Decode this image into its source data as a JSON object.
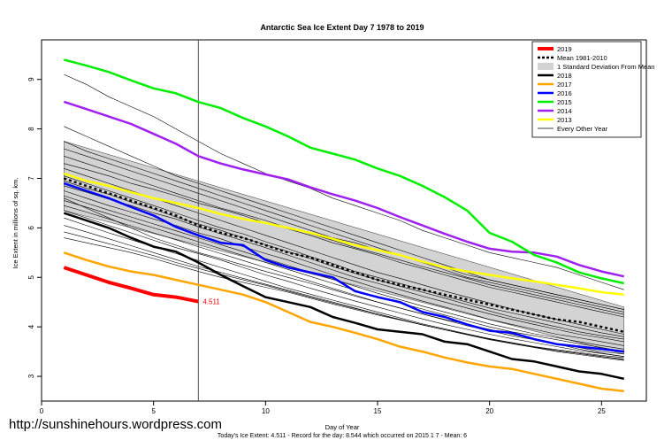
{
  "watermark": "http://sunshinehours.wordpress.com",
  "footer_text": "Today's Ice Extent: 4.511  - Record for the day: 8.544 which occurred on 2015 1 7  - Mean: 6",
  "chart_data": {
    "type": "line",
    "title": "Antarctic Sea Ice Extent Day 7 1978 to 2019",
    "xlabel": "Day of Year",
    "ylabel": "Ice Extent in millions of sq. km.",
    "xlim": [
      0,
      27
    ],
    "ylim": [
      2.5,
      9.8
    ],
    "x_ticks": [
      0,
      5,
      10,
      15,
      20,
      25
    ],
    "y_ticks": [
      3,
      4,
      5,
      6,
      7,
      8,
      9
    ],
    "today_marker_x": 7,
    "today_label": "4.511",
    "legend_position": "top-right",
    "legend": [
      {
        "label": "2019",
        "color": "#ff0000",
        "kind": "thick"
      },
      {
        "label": "Mean 1981-2010",
        "color": "#000000",
        "kind": "dotted"
      },
      {
        "label": "1 Standard Deviation From Mean",
        "color": "#d3d3d3",
        "kind": "box"
      },
      {
        "label": "2018",
        "color": "#000000",
        "kind": "line"
      },
      {
        "label": "2017",
        "color": "#ffa500",
        "kind": "line"
      },
      {
        "label": "2016",
        "color": "#0000ff",
        "kind": "line"
      },
      {
        "label": "2015",
        "color": "#00ee00",
        "kind": "line"
      },
      {
        "label": "2014",
        "color": "#a020f0",
        "kind": "line"
      },
      {
        "label": "2013",
        "color": "#ffff00",
        "kind": "line"
      },
      {
        "label": "Every Other Year",
        "color": "#000000",
        "kind": "thin"
      }
    ],
    "sd_band": {
      "x": [
        1,
        26
      ],
      "upper": [
        7.75,
        4.4
      ],
      "lower": [
        6.35,
        3.45
      ]
    },
    "series": [
      {
        "name": "Mean 1981-2010",
        "color": "#000000",
        "style": "dotted",
        "x": [
          1,
          2,
          3,
          4,
          5,
          6,
          7,
          8,
          9,
          10,
          11,
          12,
          13,
          14,
          15,
          16,
          17,
          18,
          19,
          20,
          21,
          22,
          23,
          24,
          25,
          26
        ],
        "values": [
          7.0,
          6.85,
          6.7,
          6.55,
          6.4,
          6.25,
          6.05,
          5.9,
          5.8,
          5.65,
          5.5,
          5.4,
          5.25,
          5.1,
          4.95,
          4.85,
          4.75,
          4.65,
          4.55,
          4.45,
          4.35,
          4.25,
          4.15,
          4.1,
          4.0,
          3.9
        ]
      },
      {
        "name": "2018",
        "color": "#000000",
        "style": "line",
        "x": [
          1,
          2,
          3,
          4,
          5,
          6,
          7,
          8,
          9,
          10,
          11,
          12,
          13,
          14,
          15,
          16,
          17,
          18,
          19,
          20,
          21,
          22,
          23,
          24,
          25,
          26
        ],
        "values": [
          6.3,
          6.15,
          6.0,
          5.8,
          5.62,
          5.52,
          5.3,
          5.05,
          4.82,
          4.6,
          4.5,
          4.4,
          4.2,
          4.08,
          3.95,
          3.9,
          3.85,
          3.7,
          3.65,
          3.5,
          3.35,
          3.3,
          3.2,
          3.1,
          3.05,
          2.95
        ]
      },
      {
        "name": "2017",
        "color": "#ffa500",
        "style": "line",
        "x": [
          1,
          2,
          3,
          4,
          5,
          6,
          7,
          8,
          9,
          10,
          11,
          12,
          13,
          14,
          15,
          16,
          17,
          18,
          19,
          20,
          21,
          22,
          23,
          24,
          25,
          26
        ],
        "values": [
          5.5,
          5.35,
          5.22,
          5.12,
          5.05,
          4.95,
          4.85,
          4.75,
          4.65,
          4.5,
          4.3,
          4.1,
          4.0,
          3.88,
          3.75,
          3.6,
          3.5,
          3.38,
          3.28,
          3.2,
          3.15,
          3.05,
          2.95,
          2.85,
          2.75,
          2.7
        ]
      },
      {
        "name": "2016",
        "color": "#0000ff",
        "style": "line",
        "x": [
          1,
          2,
          3,
          4,
          5,
          6,
          7,
          8,
          9,
          10,
          11,
          12,
          13,
          14,
          15,
          16,
          17,
          18,
          19,
          20,
          21,
          22,
          23,
          24,
          25,
          26
        ],
        "values": [
          6.9,
          6.75,
          6.6,
          6.42,
          6.25,
          6.02,
          5.85,
          5.7,
          5.65,
          5.35,
          5.2,
          5.1,
          5.0,
          4.72,
          4.6,
          4.5,
          4.3,
          4.2,
          4.05,
          3.92,
          3.88,
          3.75,
          3.65,
          3.6,
          3.55,
          3.5
        ]
      },
      {
        "name": "2015",
        "color": "#00ee00",
        "style": "line",
        "x": [
          1,
          2,
          3,
          4,
          5,
          6,
          7,
          8,
          9,
          10,
          11,
          12,
          13,
          14,
          15,
          16,
          17,
          18,
          19,
          20,
          21,
          22,
          23,
          24,
          25,
          26
        ],
        "values": [
          9.4,
          9.28,
          9.15,
          8.98,
          8.82,
          8.72,
          8.544,
          8.42,
          8.22,
          8.05,
          7.85,
          7.62,
          7.5,
          7.38,
          7.2,
          7.05,
          6.85,
          6.62,
          6.35,
          5.9,
          5.72,
          5.45,
          5.3,
          5.1,
          4.98,
          4.88
        ]
      },
      {
        "name": "2014",
        "color": "#a020f0",
        "style": "line",
        "x": [
          1,
          2,
          3,
          4,
          5,
          6,
          7,
          8,
          9,
          10,
          11,
          12,
          13,
          14,
          15,
          16,
          17,
          18,
          19,
          20,
          21,
          22,
          23,
          24,
          25,
          26
        ],
        "values": [
          8.55,
          8.4,
          8.25,
          8.1,
          7.9,
          7.7,
          7.45,
          7.3,
          7.18,
          7.08,
          6.98,
          6.82,
          6.68,
          6.55,
          6.4,
          6.22,
          6.05,
          5.88,
          5.72,
          5.58,
          5.52,
          5.5,
          5.42,
          5.25,
          5.12,
          5.02
        ]
      },
      {
        "name": "2013",
        "color": "#ffff00",
        "style": "line",
        "x": [
          1,
          2,
          3,
          4,
          5,
          6,
          7,
          8,
          9,
          10,
          11,
          12,
          13,
          14,
          15,
          16,
          17,
          18,
          19,
          20,
          21,
          22,
          23,
          24,
          25,
          26
        ],
        "values": [
          7.1,
          6.95,
          6.85,
          6.72,
          6.6,
          6.5,
          6.4,
          6.28,
          6.18,
          6.1,
          6.0,
          5.9,
          5.78,
          5.65,
          5.55,
          5.45,
          5.32,
          5.2,
          5.12,
          5.05,
          4.98,
          4.92,
          4.85,
          4.78,
          4.7,
          4.65
        ]
      },
      {
        "name": "2019",
        "color": "#ff0000",
        "style": "thick",
        "x": [
          1,
          2,
          3,
          4,
          5,
          6,
          7
        ],
        "values": [
          5.2,
          5.05,
          4.9,
          4.78,
          4.65,
          4.6,
          4.511
        ]
      }
    ],
    "every_other_year": [
      [
        9.1,
        8.9,
        8.65,
        8.45,
        8.25,
        8.0,
        7.75,
        7.5,
        7.3,
        7.1,
        6.95,
        6.8,
        6.6,
        6.45,
        6.3,
        6.15,
        5.95,
        5.8,
        5.65,
        5.5,
        5.4,
        5.3,
        5.2,
        5.05,
        4.9,
        4.75
      ],
      [
        8.05,
        7.85,
        7.65,
        7.45,
        7.25,
        7.05,
        6.9,
        6.75,
        6.6,
        6.45,
        6.3,
        6.15,
        6.0,
        5.85,
        5.7,
        5.55,
        5.4,
        5.25,
        5.1,
        4.95,
        4.85,
        4.75,
        4.65,
        4.55,
        4.45,
        4.35
      ],
      [
        7.75,
        7.55,
        7.4,
        7.25,
        7.1,
        6.95,
        6.8,
        6.65,
        6.5,
        6.35,
        6.2,
        6.05,
        5.9,
        5.75,
        5.6,
        5.45,
        5.3,
        5.15,
        5.0,
        4.9,
        4.8,
        4.7,
        4.6,
        4.5,
        4.4,
        4.3
      ],
      [
        7.6,
        7.45,
        7.3,
        7.15,
        7.0,
        6.85,
        6.7,
        6.55,
        6.4,
        6.25,
        6.1,
        5.95,
        5.8,
        5.7,
        5.55,
        5.45,
        5.3,
        5.2,
        5.05,
        4.95,
        4.85,
        4.75,
        4.65,
        4.55,
        4.45,
        4.35
      ],
      [
        7.45,
        7.3,
        7.15,
        7.0,
        6.85,
        6.7,
        6.55,
        6.4,
        6.28,
        6.15,
        6.0,
        5.88,
        5.75,
        5.6,
        5.48,
        5.35,
        5.22,
        5.1,
        4.98,
        4.85,
        4.75,
        4.65,
        4.55,
        4.45,
        4.35,
        4.25
      ],
      [
        7.3,
        7.18,
        7.05,
        6.9,
        6.78,
        6.65,
        6.5,
        6.38,
        6.25,
        6.1,
        5.98,
        5.85,
        5.7,
        5.58,
        5.45,
        5.3,
        5.18,
        5.05,
        4.92,
        4.8,
        4.7,
        4.6,
        4.5,
        4.4,
        4.3,
        4.2
      ],
      [
        7.2,
        7.05,
        6.9,
        6.75,
        6.6,
        6.45,
        6.3,
        6.15,
        6.0,
        5.85,
        5.7,
        5.55,
        5.4,
        5.25,
        5.1,
        4.98,
        4.85,
        4.72,
        4.6,
        4.48,
        4.36,
        4.25,
        4.15,
        4.05,
        3.95,
        3.85
      ],
      [
        7.05,
        6.9,
        6.75,
        6.6,
        6.45,
        6.3,
        6.15,
        6.0,
        5.88,
        5.72,
        5.58,
        5.42,
        5.28,
        5.12,
        5.0,
        4.88,
        4.75,
        4.62,
        4.5,
        4.38,
        4.28,
        4.18,
        4.08,
        3.98,
        3.88,
        3.8
      ],
      [
        6.95,
        6.8,
        6.68,
        6.52,
        6.38,
        6.22,
        6.08,
        5.95,
        5.8,
        5.66,
        5.52,
        5.38,
        5.22,
        5.08,
        4.95,
        4.82,
        4.7,
        4.58,
        4.45,
        4.32,
        4.2,
        4.1,
        4.0,
        3.9,
        3.82,
        3.75
      ],
      [
        6.85,
        6.72,
        6.58,
        6.45,
        6.3,
        6.18,
        6.02,
        5.88,
        5.74,
        5.6,
        5.45,
        5.3,
        5.15,
        5.0,
        4.88,
        4.75,
        4.62,
        4.5,
        4.38,
        4.26,
        4.15,
        4.05,
        3.95,
        3.85,
        3.78,
        3.7
      ],
      [
        6.75,
        6.6,
        6.45,
        6.32,
        6.18,
        6.05,
        5.9,
        5.78,
        5.62,
        5.48,
        5.35,
        5.2,
        5.05,
        4.92,
        4.78,
        4.65,
        4.52,
        4.4,
        4.28,
        4.15,
        4.05,
        3.95,
        3.85,
        3.78,
        3.7,
        3.62
      ],
      [
        6.65,
        6.5,
        6.36,
        6.22,
        6.08,
        5.94,
        5.8,
        5.66,
        5.52,
        5.38,
        5.24,
        5.1,
        4.96,
        4.82,
        4.68,
        4.55,
        4.42,
        4.3,
        4.18,
        4.06,
        3.96,
        3.86,
        3.78,
        3.7,
        3.62,
        3.55
      ],
      [
        6.55,
        6.42,
        6.28,
        6.14,
        6.0,
        5.86,
        5.72,
        5.58,
        5.44,
        5.3,
        5.16,
        5.02,
        4.88,
        4.74,
        4.6,
        4.48,
        4.36,
        4.24,
        4.12,
        4.0,
        3.9,
        3.82,
        3.74,
        3.66,
        3.58,
        3.5
      ],
      [
        6.45,
        6.32,
        6.18,
        6.04,
        5.9,
        5.76,
        5.62,
        5.48,
        5.34,
        5.2,
        5.06,
        4.92,
        4.78,
        4.64,
        4.5,
        4.38,
        4.26,
        4.14,
        4.02,
        3.92,
        3.82,
        3.74,
        3.66,
        3.58,
        3.5,
        3.45
      ],
      [
        6.35,
        6.2,
        6.05,
        5.9,
        5.75,
        5.6,
        5.48,
        5.35,
        5.2,
        5.05,
        4.92,
        4.78,
        4.65,
        4.52,
        4.4,
        4.28,
        4.16,
        4.05,
        3.95,
        3.85,
        3.76,
        3.68,
        3.6,
        3.52,
        3.46,
        3.4
      ],
      [
        6.2,
        6.05,
        5.9,
        5.76,
        5.62,
        5.48,
        5.34,
        5.2,
        5.06,
        4.92,
        4.78,
        4.66,
        4.54,
        4.42,
        4.3,
        4.18,
        4.06,
        3.96,
        3.86,
        3.76,
        3.68,
        3.6,
        3.52,
        3.46,
        3.4,
        3.34
      ],
      [
        6.05,
        5.92,
        5.78,
        5.64,
        5.5,
        5.36,
        5.22,
        5.1,
        4.98,
        4.86,
        4.74,
        4.62,
        4.5,
        4.38,
        4.26,
        4.15,
        4.04,
        3.94,
        3.84,
        3.74,
        3.66,
        3.58,
        3.5,
        3.44,
        3.38,
        3.32
      ],
      [
        5.92,
        5.8,
        5.68,
        5.56,
        5.44,
        5.3,
        5.18,
        5.06,
        4.95,
        4.84,
        4.72,
        4.6,
        4.48,
        4.37,
        4.26,
        4.15,
        4.04,
        3.94,
        3.84,
        3.75,
        3.67,
        3.59,
        3.52,
        3.46,
        3.4,
        3.35
      ],
      [
        5.8,
        5.7,
        5.6,
        5.5,
        5.38,
        5.25,
        5.12,
        5.0,
        4.9,
        4.8,
        4.7,
        4.58,
        4.46,
        4.35,
        4.24,
        4.14,
        4.04,
        3.94,
        3.85,
        3.76,
        3.68,
        3.6,
        3.54,
        3.48,
        3.42,
        3.38
      ],
      [
        6.6,
        6.4,
        6.2,
        6.0,
        5.8,
        5.65,
        5.5,
        5.38,
        5.25,
        5.12,
        5.0,
        4.88,
        4.75,
        4.62,
        4.5,
        4.38,
        4.26,
        4.15,
        4.05,
        3.95,
        3.85,
        3.75,
        3.65,
        3.55,
        3.47,
        3.4
      ]
    ]
  }
}
